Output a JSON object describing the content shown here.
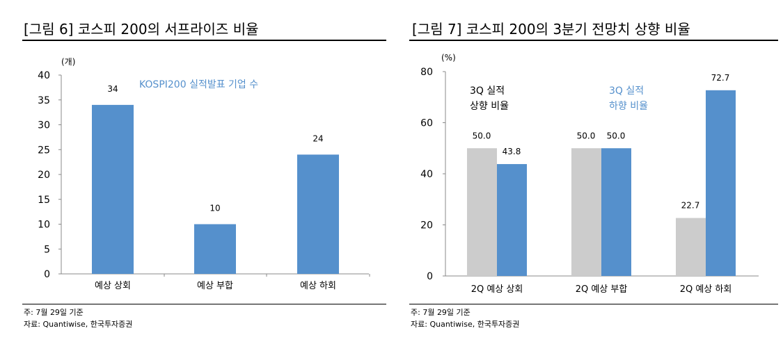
{
  "chart_data": [
    {
      "type": "bar",
      "title": "[그림 6] 코스피 200의 서프라이즈 비율",
      "ylabel": "(개)",
      "ylim": [
        0,
        40
      ],
      "yticks": [
        0,
        5,
        10,
        15,
        20,
        25,
        30,
        35,
        40
      ],
      "categories": [
        "예상 상회",
        "예상 부합",
        "예상 하회"
      ],
      "values": [
        34,
        10,
        24
      ],
      "data_labels": [
        "34",
        "10",
        "24"
      ],
      "annotation": "KOSPI200 실적발표 기업 수",
      "color": "#5590cc",
      "note": "주: 7월 29일 기준",
      "source": "자료: Quantiwise, 한국투자증권"
    },
    {
      "type": "bar",
      "title": "[그림 7] 코스피 200의 3분기 전망치 상향 비율",
      "ylabel": "(%)",
      "ylim": [
        0,
        80
      ],
      "yticks": [
        0,
        20,
        40,
        60,
        80
      ],
      "categories": [
        "2Q 예상 상회",
        "2Q 예상 부합",
        "2Q 예상 하회"
      ],
      "series": [
        {
          "name": "3Q 실적 상향 비율",
          "name_lines": [
            "3Q 실적",
            "상향 비율"
          ],
          "values": [
            50.0,
            50.0,
            22.7
          ],
          "labels": [
            "50.0",
            "50.0",
            "22.7"
          ],
          "color": "#cccccc",
          "text_color": "#000000"
        },
        {
          "name": "3Q 실적 하향 비율",
          "name_lines": [
            "3Q 실적",
            "하향 비율"
          ],
          "values": [
            43.8,
            50.0,
            72.7
          ],
          "labels": [
            "43.8",
            "50.0",
            "72.7"
          ],
          "color": "#5590cc",
          "text_color": "#5590cc"
        }
      ],
      "note": "주: 7월 29일 기준",
      "source": "자료: Quantiwise, 한국투자증권"
    }
  ]
}
